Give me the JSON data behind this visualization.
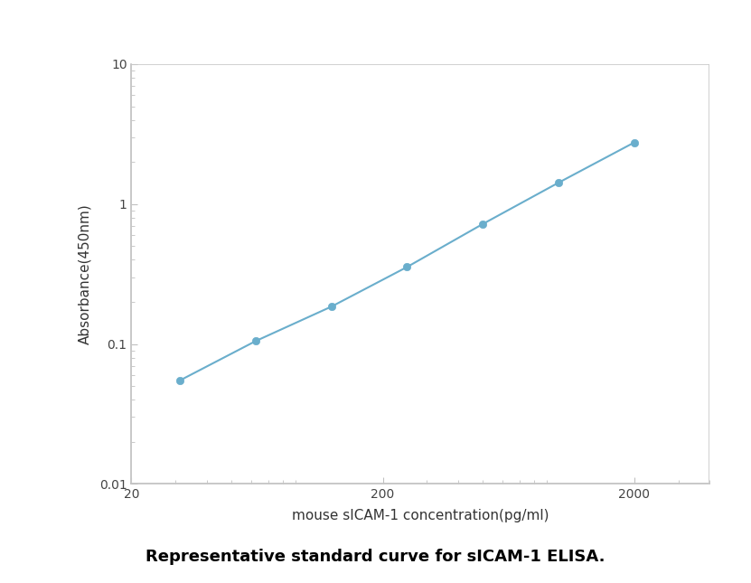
{
  "x_data": [
    31.25,
    62.5,
    125,
    250,
    500,
    1000,
    2000
  ],
  "y_data": [
    0.055,
    0.105,
    0.185,
    0.355,
    0.72,
    1.42,
    2.75
  ],
  "line_color": "#6aaecc",
  "marker_color": "#6aaecc",
  "marker_size": 6,
  "line_width": 1.5,
  "xlabel": "mouse sICAM-1 concentration(pg/ml)",
  "ylabel": "Absorbance(450nm)",
  "xlim_log": [
    1.301,
    3.602
  ],
  "ylim": [
    0.01,
    10
  ],
  "xticks": [
    20,
    200,
    2000
  ],
  "yticks": [
    0.01,
    0.1,
    1,
    10
  ],
  "caption": "Representative standard curve for sICAM-1 ELISA.",
  "axis_color": "#c0c0c0",
  "tick_color": "#c0c0c0",
  "label_fontsize": 11,
  "tick_fontsize": 10,
  "caption_fontsize": 13,
  "figure_bg": "#ffffff",
  "axes_bg": "#ffffff",
  "border_color": "#c8c8c8"
}
